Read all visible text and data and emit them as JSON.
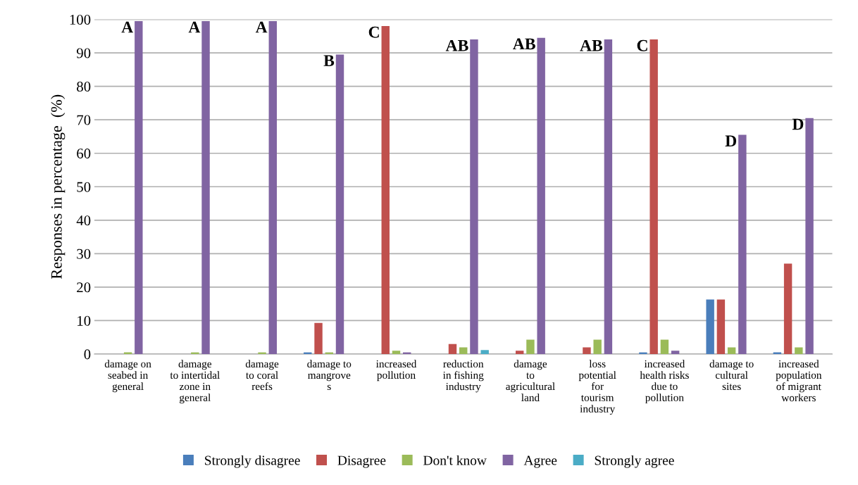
{
  "chart_data": {
    "type": "bar",
    "ylabel": "Responses in percentage  (%)",
    "categories": [
      "damage on\nseabed in\ngeneral",
      "damage\nto intertidal\nzone in\ngeneral",
      "damage\nto coral\nreefs",
      "damage to\nmangrove\ns",
      "increased\npollution",
      "reduction\nin fishing\nindustry",
      "damage\nto\nagricultural\nland",
      "loss\npotential\nfor\ntourism\nindustry",
      "increased\nhealth risks\ndue to\npollution",
      "damage to\ncultural\nsites",
      "increased\npopulation\nof migrant\nworkers"
    ],
    "series": [
      {
        "name": "Strongly disagree",
        "color": "#4a7ebb",
        "values": [
          0,
          0,
          0,
          0.5,
          0,
          0,
          0,
          0,
          0.5,
          16.3,
          0.5
        ]
      },
      {
        "name": "Disagree",
        "color": "#c0504d",
        "values": [
          0,
          0,
          0,
          9.3,
          98,
          3,
          1,
          2,
          94,
          16.3,
          27
        ]
      },
      {
        "name": "Don't know",
        "color": "#9bbb59",
        "values": [
          0.5,
          0.5,
          0.5,
          0.5,
          1,
          2,
          4.3,
          4.3,
          4.3,
          2,
          2
        ]
      },
      {
        "name": "Agree",
        "color": "#8064a2",
        "values": [
          99.5,
          99.5,
          99.5,
          89.5,
          0.5,
          94,
          94.5,
          94,
          1,
          65.5,
          70.5
        ]
      },
      {
        "name": "Strongly agree",
        "color": "#4bacc6",
        "values": [
          0,
          0,
          0,
          0,
          0,
          1.2,
          0,
          0,
          0,
          0,
          0
        ]
      }
    ],
    "ylim": [
      0,
      100
    ],
    "yticks": [
      0,
      10,
      20,
      30,
      40,
      50,
      60,
      70,
      80,
      90,
      100
    ],
    "grid": "y",
    "legend": "bottom",
    "annotations": [
      "A",
      "A",
      "A",
      "B",
      "C",
      "AB",
      "AB",
      "AB",
      "C",
      "D",
      "D"
    ]
  }
}
